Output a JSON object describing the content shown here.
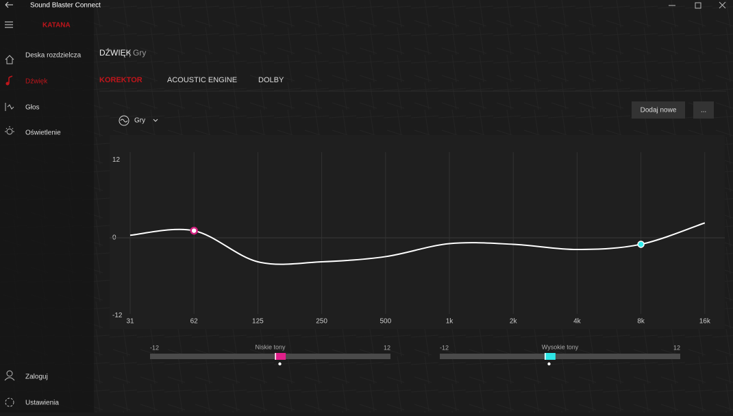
{
  "window": {
    "title": "Sound Blaster Connect",
    "device": "KATANA"
  },
  "nav": {
    "items": [
      "Deska rozdzielcza",
      "Dźwięk",
      "Głos",
      "Oświetlenie"
    ],
    "bottom": [
      "Zaloguj",
      "Ustawienia"
    ]
  },
  "header": {
    "section": "DŹWIĘK",
    "separator": "|",
    "page": "Gry"
  },
  "tabs": [
    "KOREKTOR",
    "ACOUSTIC ENGINE",
    "DOLBY"
  ],
  "preset": {
    "name": "Gry",
    "add_button": "Dodaj nowe",
    "more_button": "..."
  },
  "equalizer": {
    "ylim": [
      -12,
      12
    ],
    "yticks": [
      12,
      0,
      -12
    ],
    "frequencies": [
      "31",
      "62",
      "125",
      "250",
      "500",
      "1k",
      "2k",
      "4k",
      "8k",
      "16k"
    ],
    "values": [
      0.4,
      1.1,
      -3.7,
      -3.7,
      -2.9,
      -0.9,
      -1.0,
      -1.8,
      -1.0,
      2.3
    ]
  },
  "bass": {
    "label": "Niskie tony",
    "min": -12,
    "max": 12,
    "value": 1
  },
  "treble": {
    "label": "Wysokie tony",
    "min": -12,
    "max": 12,
    "value": -1
  }
}
